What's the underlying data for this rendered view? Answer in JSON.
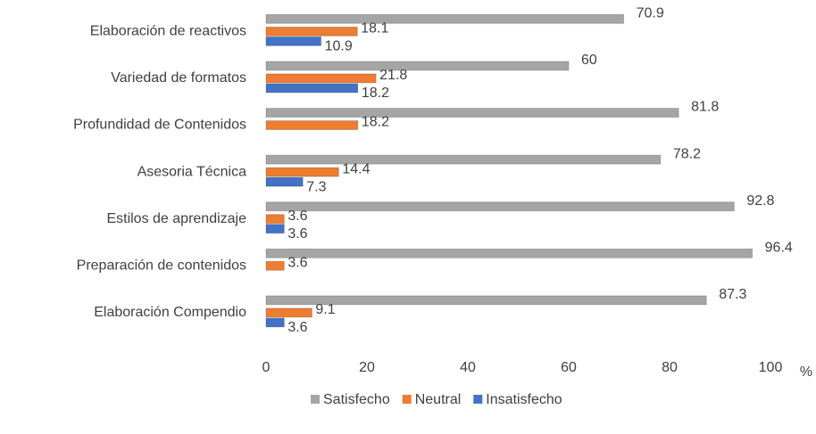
{
  "chart_data": {
    "type": "bar",
    "orientation": "horizontal",
    "categories": [
      "Elaboración de reactivos",
      "Variedad de formatos",
      "Profundidad de Contenidos",
      "Asesoria Técnica",
      "Estilos de aprendizaje",
      "Preparación de contenidos",
      "Elaboración Compendio"
    ],
    "series": [
      {
        "name": "Satisfecho",
        "color": "#a5a5a5",
        "values": [
          70.9,
          60,
          81.8,
          78.2,
          92.8,
          96.4,
          87.3
        ]
      },
      {
        "name": "Neutral",
        "color": "#ed7d31",
        "values": [
          18.1,
          21.8,
          18.2,
          14.4,
          3.6,
          3.6,
          9.1
        ]
      },
      {
        "name": "Insatisfecho",
        "color": "#4472c4",
        "values": [
          10.9,
          18.2,
          null,
          7.3,
          3.6,
          null,
          3.6
        ]
      }
    ],
    "xlabel": "%",
    "xlim": [
      0,
      100
    ],
    "xticks": [
      0,
      20,
      40,
      60,
      80,
      100
    ],
    "grid": false,
    "legend": "bottom"
  }
}
